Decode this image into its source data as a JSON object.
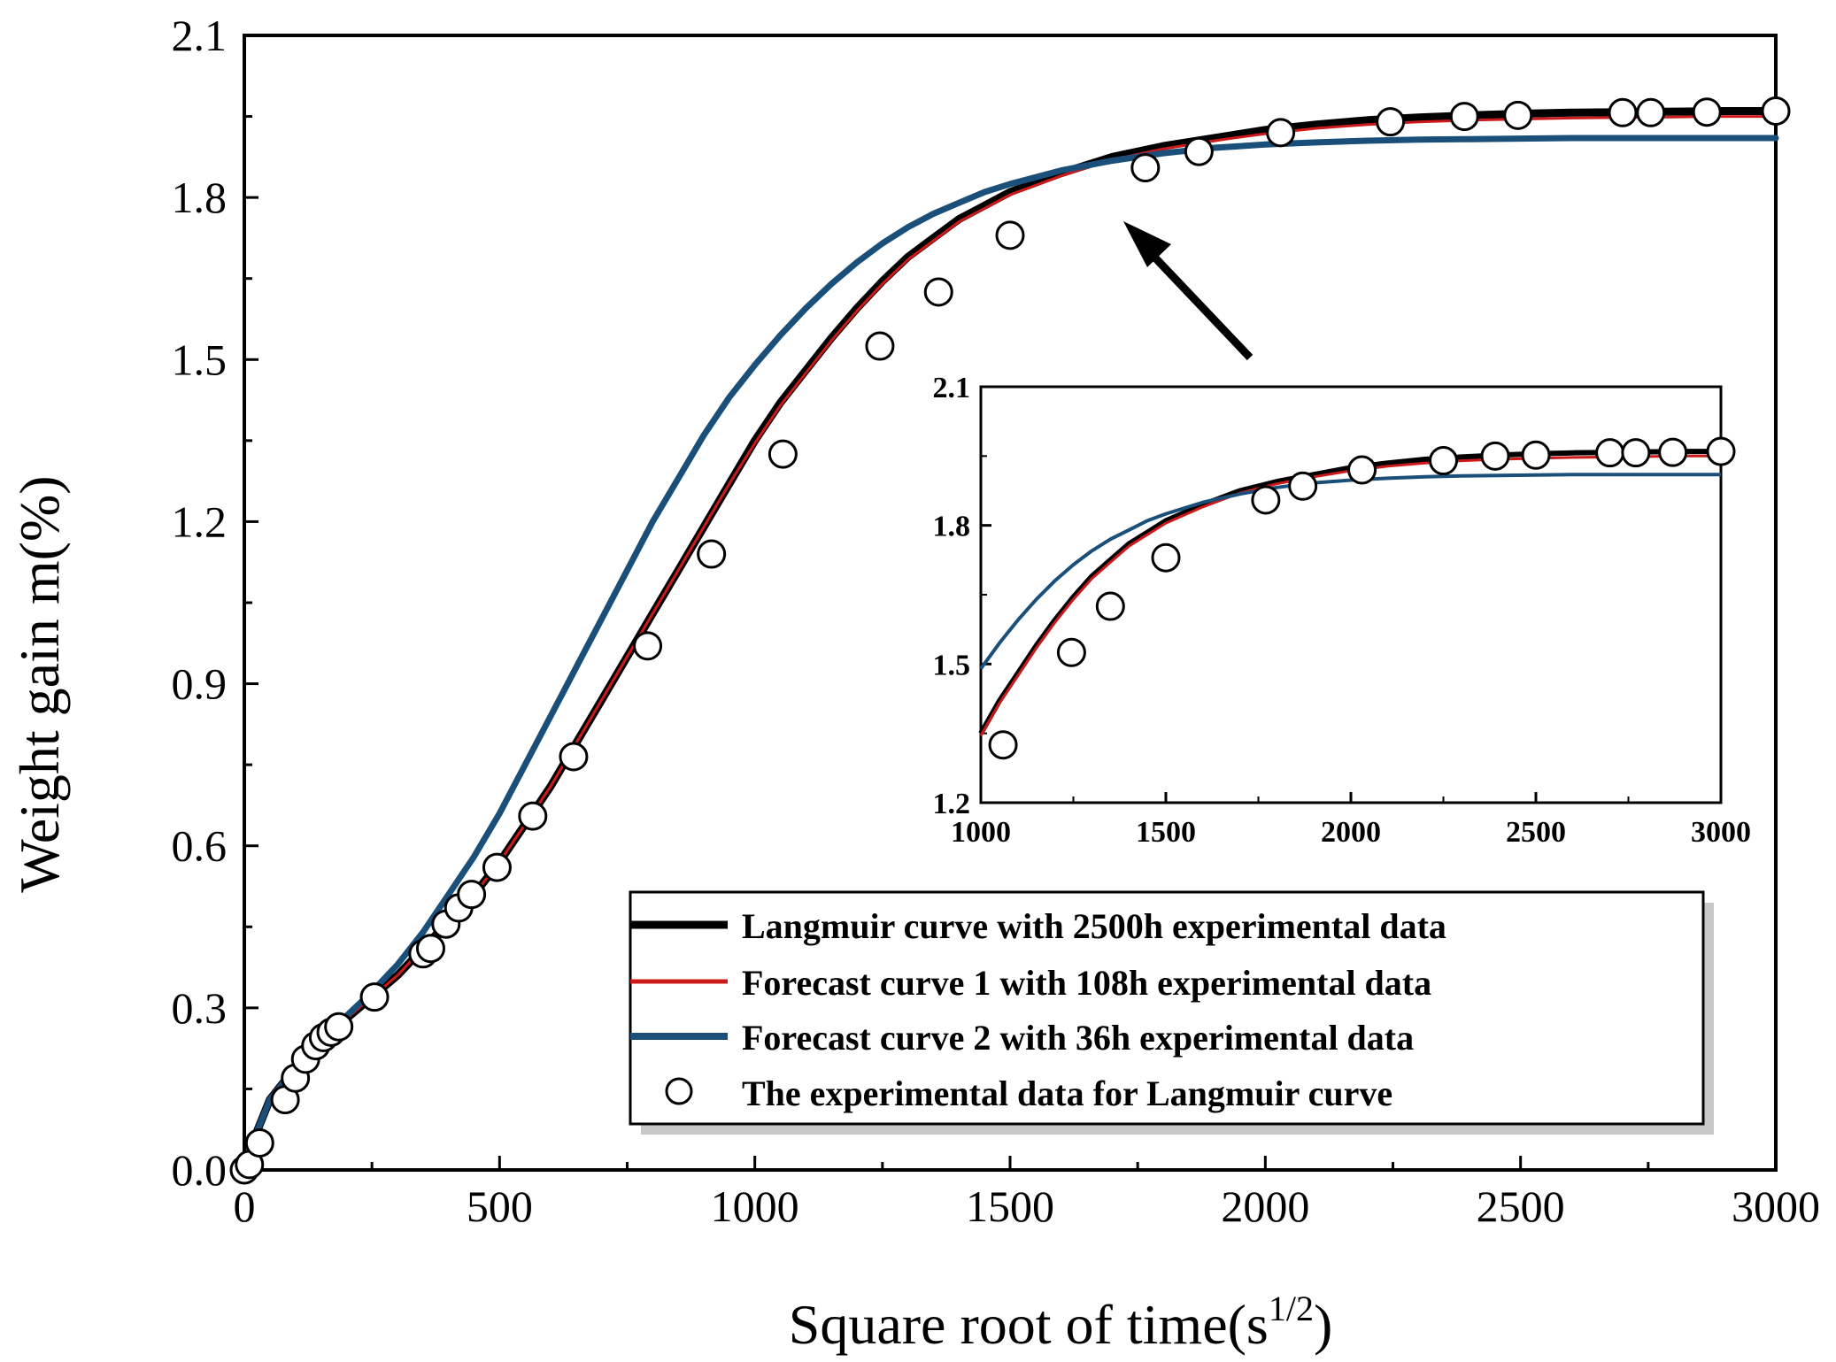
{
  "chart_data": {
    "type": "line",
    "title": "",
    "xlabel": "Square root of time(s",
    "xlabel_superscript": "1/2",
    "xlabel_suffix": ")",
    "ylabel": "Weight gain m(%)",
    "xlim": [
      0,
      3000
    ],
    "ylim": [
      0,
      2.1
    ],
    "x_ticks": [
      "0",
      "500",
      "1000",
      "1500",
      "2000",
      "2500",
      "3000"
    ],
    "y_ticks": [
      "0.0",
      "0.3",
      "0.6",
      "0.9",
      "1.2",
      "1.5",
      "1.8",
      "2.1"
    ],
    "grid": false,
    "legend_position": "bottom-right",
    "series": [
      {
        "name": "Langmuir curve with 2500h experimental data",
        "color": "#000000",
        "style": "line",
        "x": [
          0,
          20,
          50,
          100,
          150,
          200,
          250,
          300,
          350,
          400,
          450,
          500,
          550,
          600,
          650,
          700,
          750,
          800,
          850,
          900,
          950,
          1000,
          1050,
          1100,
          1150,
          1200,
          1250,
          1300,
          1350,
          1400,
          1450,
          1500,
          1600,
          1700,
          1800,
          1900,
          2000,
          2100,
          2200,
          2300,
          2400,
          2500,
          2600,
          2700,
          2800,
          2900,
          3000
        ],
        "y": [
          0.0,
          0.06,
          0.13,
          0.19,
          0.24,
          0.28,
          0.32,
          0.36,
          0.41,
          0.46,
          0.51,
          0.57,
          0.64,
          0.71,
          0.79,
          0.87,
          0.95,
          1.03,
          1.11,
          1.19,
          1.27,
          1.35,
          1.42,
          1.48,
          1.54,
          1.595,
          1.645,
          1.69,
          1.725,
          1.76,
          1.785,
          1.81,
          1.845,
          1.875,
          1.895,
          1.91,
          1.925,
          1.935,
          1.943,
          1.948,
          1.952,
          1.955,
          1.957,
          1.958,
          1.959,
          1.96,
          1.96
        ]
      },
      {
        "name": "Forecast curve 1 with 108h experimental data",
        "color": "#cc1a1a",
        "style": "line",
        "x": [
          0,
          20,
          50,
          100,
          150,
          200,
          250,
          300,
          350,
          400,
          450,
          500,
          550,
          600,
          650,
          700,
          750,
          800,
          850,
          900,
          950,
          1000,
          1050,
          1100,
          1150,
          1200,
          1250,
          1300,
          1350,
          1400,
          1450,
          1500,
          1600,
          1700,
          1800,
          1900,
          2000,
          2100,
          2200,
          2300,
          2400,
          2500,
          2600,
          2700,
          2800,
          2900,
          3000
        ],
        "y": [
          0.0,
          0.06,
          0.13,
          0.19,
          0.24,
          0.28,
          0.32,
          0.36,
          0.41,
          0.46,
          0.51,
          0.57,
          0.64,
          0.71,
          0.79,
          0.87,
          0.95,
          1.03,
          1.11,
          1.19,
          1.27,
          1.345,
          1.415,
          1.475,
          1.535,
          1.59,
          1.64,
          1.685,
          1.72,
          1.755,
          1.78,
          1.805,
          1.84,
          1.87,
          1.89,
          1.905,
          1.918,
          1.928,
          1.935,
          1.94,
          1.943,
          1.945,
          1.947,
          1.948,
          1.949,
          1.95,
          1.95
        ]
      },
      {
        "name": "Forecast curve 2 with 36h experimental data",
        "color": "#1a4f7a",
        "style": "line",
        "x": [
          0,
          20,
          50,
          100,
          150,
          200,
          250,
          300,
          350,
          400,
          450,
          500,
          550,
          600,
          650,
          700,
          750,
          800,
          850,
          900,
          950,
          1000,
          1050,
          1100,
          1150,
          1200,
          1250,
          1300,
          1350,
          1400,
          1450,
          1500,
          1600,
          1700,
          1800,
          1900,
          2000,
          2100,
          2200,
          2300,
          2400,
          2500,
          2600,
          2700,
          2800,
          2900,
          3000
        ],
        "y": [
          0.0,
          0.06,
          0.13,
          0.19,
          0.24,
          0.285,
          0.33,
          0.38,
          0.44,
          0.51,
          0.58,
          0.66,
          0.75,
          0.84,
          0.93,
          1.02,
          1.11,
          1.2,
          1.28,
          1.36,
          1.43,
          1.49,
          1.545,
          1.595,
          1.64,
          1.68,
          1.715,
          1.745,
          1.77,
          1.79,
          1.81,
          1.825,
          1.85,
          1.868,
          1.882,
          1.892,
          1.898,
          1.902,
          1.905,
          1.907,
          1.908,
          1.909,
          1.91,
          1.91,
          1.91,
          1.91,
          1.91
        ]
      },
      {
        "name": "The experimental data for Langmuir curve",
        "color": "#000000",
        "style": "markers",
        "x": [
          0,
          10,
          30,
          80,
          100,
          120,
          140,
          155,
          170,
          185,
          255,
          350,
          365,
          395,
          420,
          445,
          495,
          565,
          645,
          790,
          915,
          1055,
          1245,
          1360,
          1500,
          1765,
          1870,
          2030,
          2245,
          2390,
          2495,
          2700,
          2755,
          2865,
          3000
        ],
        "y": [
          0.0,
          0.01,
          0.05,
          0.13,
          0.17,
          0.205,
          0.23,
          0.245,
          0.255,
          0.265,
          0.32,
          0.4,
          0.41,
          0.455,
          0.485,
          0.51,
          0.56,
          0.655,
          0.765,
          0.97,
          1.14,
          1.325,
          1.525,
          1.625,
          1.73,
          1.855,
          1.885,
          1.92,
          1.94,
          1.95,
          1.952,
          1.957,
          1.957,
          1.958,
          1.96
        ]
      }
    ],
    "inset": {
      "xlim": [
        1000,
        3000
      ],
      "ylim": [
        1.2,
        2.1
      ],
      "x_ticks": [
        "1000",
        "1500",
        "2000",
        "2500",
        "3000"
      ],
      "y_ticks": [
        "1.2",
        "1.5",
        "1.8",
        "2.1"
      ],
      "marker_x": [
        1060,
        1245,
        1350,
        1500,
        1770,
        1870,
        2030,
        2250,
        2390,
        2500,
        2700,
        2770,
        2870,
        3000
      ],
      "marker_y": [
        1.325,
        1.525,
        1.625,
        1.73,
        1.855,
        1.885,
        1.92,
        1.94,
        1.95,
        1.952,
        1.957,
        1.957,
        1.958,
        1.96
      ]
    },
    "annotation": "arrow pointing from inset to curve near x=1700, y=1.75"
  }
}
